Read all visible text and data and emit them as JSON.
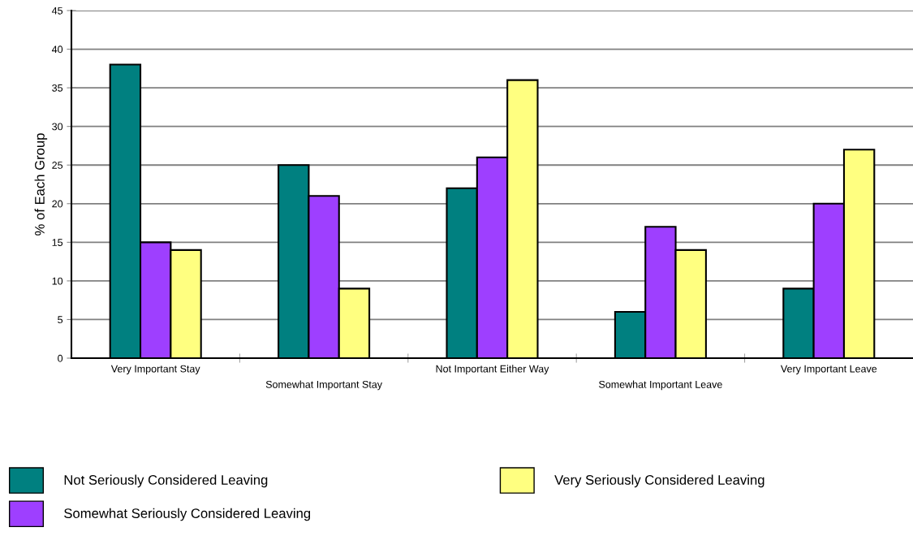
{
  "chart_data": {
    "type": "bar",
    "ylabel": "% of Each Group",
    "categories": [
      "Very Important Stay",
      "Somewhat Important Stay",
      "Not Important Either Way",
      "Somewhat Important Leave",
      "Very Important Leave"
    ],
    "series": [
      {
        "name": "Not Seriously Considered Leaving",
        "color": "#008080",
        "values": [
          38,
          25,
          22,
          6,
          9
        ]
      },
      {
        "name": "Somewhat Seriously Considered Leaving",
        "color": "#9e3fff",
        "values": [
          15,
          21,
          26,
          17,
          20
        ]
      },
      {
        "name": "Very Seriously Considered Leaving",
        "color": "#ffff80",
        "values": [
          14,
          9,
          36,
          14,
          27
        ]
      }
    ],
    "ylim": [
      0,
      45
    ],
    "yticks": [
      0,
      5,
      10,
      15,
      20,
      25,
      30,
      35,
      40,
      45
    ],
    "grid": "y",
    "legend": "bottom"
  }
}
